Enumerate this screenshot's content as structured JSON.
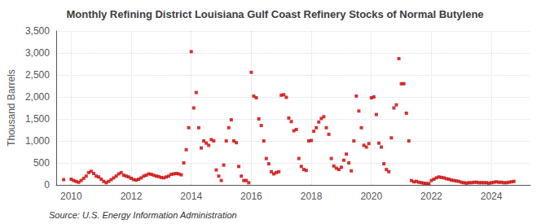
{
  "chart_data": {
    "type": "scatter",
    "title": "Monthly Refining District Louisiana Gulf Coast Refinery Stocks of Normal Butylene",
    "ylabel": "Thousand Barrels",
    "annotations": [
      "Source: U.S. Energy Information Administration"
    ],
    "color": "#cc0000",
    "marker": "square",
    "grid": true,
    "xlim": [
      2009.5,
      2025.3
    ],
    "xticks": [
      2010,
      2012,
      2014,
      2016,
      2018,
      2020,
      2022,
      2024
    ],
    "ylim": [
      0,
      3500
    ],
    "yticks": [
      0,
      500,
      {
        "value": 1000,
        "label": "1,000"
      },
      {
        "value": 1500,
        "label": "1,500"
      },
      {
        "value": 2000,
        "label": "2,000"
      },
      {
        "value": 2500,
        "label": "2,500"
      },
      {
        "value": 3000,
        "label": "3,000"
      },
      {
        "value": 3500,
        "label": "3,500"
      }
    ],
    "x": [
      2009.75,
      2010.0,
      2010.083,
      2010.167,
      2010.25,
      2010.333,
      2010.417,
      2010.5,
      2010.583,
      2010.667,
      2010.75,
      2010.833,
      2010.917,
      2011.0,
      2011.083,
      2011.167,
      2011.25,
      2011.333,
      2011.417,
      2011.5,
      2011.583,
      2011.667,
      2011.75,
      2011.833,
      2011.917,
      2012.0,
      2012.083,
      2012.167,
      2012.25,
      2012.333,
      2012.417,
      2012.5,
      2012.583,
      2012.667,
      2012.75,
      2012.833,
      2012.917,
      2013.0,
      2013.083,
      2013.167,
      2013.25,
      2013.333,
      2013.417,
      2013.5,
      2013.583,
      2013.667,
      2013.75,
      2013.833,
      2013.917,
      2014.0,
      2014.083,
      2014.167,
      2014.25,
      2014.333,
      2014.417,
      2014.5,
      2014.583,
      2014.667,
      2014.75,
      2014.833,
      2014.917,
      2015.0,
      2015.083,
      2015.167,
      2015.25,
      2015.333,
      2015.417,
      2015.5,
      2015.583,
      2015.667,
      2015.75,
      2015.833,
      2015.917,
      2016.0,
      2016.083,
      2016.167,
      2016.25,
      2016.333,
      2016.417,
      2016.5,
      2016.583,
      2016.667,
      2016.75,
      2016.833,
      2016.917,
      2017.0,
      2017.083,
      2017.167,
      2017.25,
      2017.333,
      2017.417,
      2017.5,
      2017.583,
      2017.667,
      2017.75,
      2017.833,
      2017.917,
      2018.0,
      2018.083,
      2018.167,
      2018.25,
      2018.333,
      2018.417,
      2018.5,
      2018.583,
      2018.667,
      2018.75,
      2018.833,
      2018.917,
      2019.0,
      2019.083,
      2019.167,
      2019.25,
      2019.333,
      2019.417,
      2019.5,
      2019.583,
      2019.667,
      2019.75,
      2019.833,
      2019.917,
      2020.0,
      2020.083,
      2020.167,
      2020.25,
      2020.333,
      2020.417,
      2020.5,
      2020.583,
      2020.667,
      2020.75,
      2020.833,
      2020.917,
      2021.0,
      2021.083,
      2021.167,
      2021.25,
      2021.333,
      2021.417,
      2021.5,
      2021.583,
      2021.667,
      2021.75,
      2021.833,
      2021.917,
      2022.0,
      2022.083,
      2022.167,
      2022.25,
      2022.333,
      2022.417,
      2022.5,
      2022.583,
      2022.667,
      2022.75,
      2022.833,
      2022.917,
      2023.0,
      2023.083,
      2023.167,
      2023.25,
      2023.333,
      2023.417,
      2023.5,
      2023.583,
      2023.667,
      2023.75,
      2023.833,
      2023.917,
      2024.0,
      2024.083,
      2024.167,
      2024.25,
      2024.333,
      2024.417,
      2024.5,
      2024.583,
      2024.667,
      2024.75
    ],
    "values": [
      120,
      130,
      100,
      80,
      60,
      100,
      150,
      200,
      280,
      310,
      260,
      200,
      180,
      130,
      80,
      50,
      80,
      120,
      160,
      200,
      250,
      280,
      220,
      200,
      180,
      150,
      120,
      110,
      130,
      160,
      200,
      220,
      250,
      240,
      220,
      200,
      190,
      170,
      160,
      180,
      200,
      240,
      250,
      260,
      250,
      230,
      500,
      800,
      1300,
      3030,
      1750,
      2100,
      1300,
      840,
      1000,
      950,
      900,
      1030,
      1000,
      340,
      200,
      100,
      450,
      1000,
      1300,
      1480,
      1000,
      960,
      420,
      200,
      100,
      100,
      50,
      2560,
      2020,
      1980,
      1500,
      1350,
      1000,
      600,
      480,
      300,
      250,
      280,
      300,
      2040,
      2050,
      1990,
      1520,
      1440,
      1230,
      1260,
      600,
      420,
      350,
      330,
      1000,
      1010,
      1220,
      1300,
      1430,
      1510,
      1550,
      1300,
      1150,
      600,
      430,
      380,
      350,
      400,
      560,
      700,
      500,
      320,
      1000,
      2020,
      1680,
      1300,
      900,
      860,
      940,
      1980,
      2000,
      1600,
      950,
      860,
      480,
      350,
      300,
      1070,
      1750,
      1820,
      2870,
      2300,
      2300,
      1630,
      1000,
      100,
      70,
      80,
      60,
      50,
      40,
      30,
      30,
      100,
      130,
      160,
      180,
      170,
      160,
      140,
      130,
      110,
      100,
      90,
      80,
      60,
      50,
      40,
      50,
      50,
      60,
      60,
      50,
      50,
      50,
      50,
      40,
      50,
      60,
      70,
      60,
      60,
      50,
      50,
      60,
      70,
      80
    ]
  }
}
